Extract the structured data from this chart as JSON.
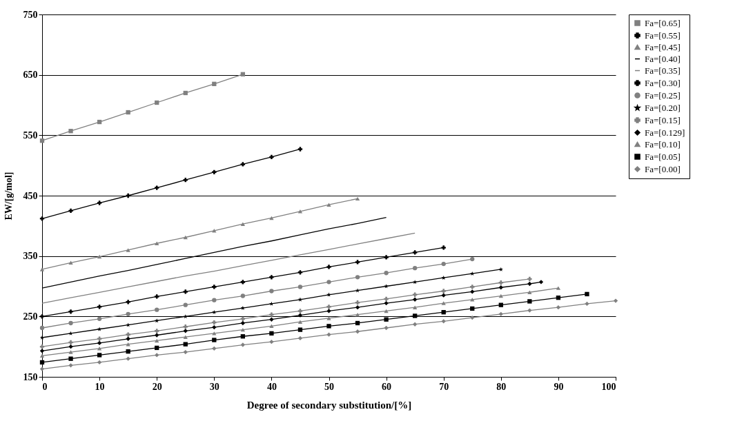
{
  "chart_data": {
    "type": "line",
    "xlabel": "Degree of secondary substitution/[%]",
    "ylabel": "EW/[g/mol]",
    "xlim": [
      0,
      100
    ],
    "xticks": [
      0,
      10,
      20,
      30,
      40,
      50,
      60,
      70,
      80,
      90,
      100
    ],
    "ylim": [
      150,
      750
    ],
    "yticks": [
      150,
      250,
      350,
      450,
      550,
      650,
      750
    ],
    "grid": "y",
    "legend": "right",
    "line_style": "solid",
    "series": [
      {
        "name": "Fa=[0.65]",
        "color": "#808080",
        "marker": "square",
        "x": [
          0,
          5,
          10,
          15,
          20,
          25,
          30,
          35
        ],
        "values": [
          541,
          557,
          572,
          588,
          604,
          620,
          635,
          651
        ]
      },
      {
        "name": "Fa=[0.55]",
        "color": "#000000",
        "marker": "cross",
        "x": [
          0,
          5,
          10,
          15,
          20,
          25,
          30,
          35,
          40,
          45
        ],
        "values": [
          412,
          425,
          438,
          450,
          463,
          476,
          489,
          502,
          514,
          527
        ]
      },
      {
        "name": "Fa=[0.45]",
        "color": "#808080",
        "marker": "triangle",
        "x": [
          0,
          5,
          10,
          15,
          20,
          25,
          30,
          35,
          40,
          45,
          50,
          55
        ],
        "values": [
          328,
          339,
          349,
          360,
          371,
          381,
          392,
          403,
          413,
          424,
          435,
          445
        ]
      },
      {
        "name": "Fa=[0.40]",
        "color": "#000000",
        "marker": "none",
        "x": [
          0,
          5,
          10,
          15,
          20,
          25,
          30,
          35,
          40,
          45,
          50,
          55,
          60
        ],
        "values": [
          297,
          307,
          317,
          326,
          336,
          346,
          356,
          366,
          375,
          385,
          395,
          404,
          414
        ]
      },
      {
        "name": "Fa=[0.35]",
        "color": "#808080",
        "marker": "none",
        "x": [
          0,
          5,
          10,
          15,
          20,
          25,
          30,
          35,
          40,
          45,
          50,
          55,
          60,
          65
        ],
        "values": [
          272,
          281,
          290,
          299,
          308,
          317,
          325,
          334,
          343,
          352,
          361,
          370,
          379,
          388
        ]
      },
      {
        "name": "Fa=[0.30]",
        "color": "#000000",
        "marker": "cross",
        "x": [
          0,
          5,
          10,
          15,
          20,
          25,
          30,
          35,
          40,
          45,
          50,
          55,
          60,
          65,
          70
        ],
        "values": [
          250,
          258,
          266,
          274,
          283,
          291,
          299,
          307,
          315,
          323,
          332,
          340,
          348,
          356,
          364
        ]
      },
      {
        "name": "Fa=[0.25]",
        "color": "#808080",
        "marker": "circle",
        "x": [
          0,
          5,
          10,
          15,
          20,
          25,
          30,
          35,
          40,
          45,
          50,
          55,
          60,
          65,
          70,
          75
        ],
        "values": [
          231,
          239,
          246,
          254,
          261,
          269,
          277,
          284,
          292,
          299,
          307,
          315,
          322,
          330,
          337,
          345
        ]
      },
      {
        "name": "Fa=[0.20]",
        "color": "#000000",
        "marker": "star",
        "x": [
          0,
          5,
          10,
          15,
          20,
          25,
          30,
          35,
          40,
          45,
          50,
          55,
          60,
          65,
          70,
          75,
          80
        ],
        "values": [
          215,
          222,
          229,
          236,
          243,
          250,
          257,
          264,
          271,
          278,
          286,
          293,
          300,
          307,
          314,
          321,
          328
        ]
      },
      {
        "name": "Fa=[0.15]",
        "color": "#808080",
        "marker": "cross",
        "x": [
          0,
          5,
          10,
          15,
          20,
          25,
          30,
          35,
          40,
          45,
          50,
          55,
          60,
          65,
          70,
          75,
          80,
          85
        ],
        "values": [
          200,
          207,
          213,
          220,
          226,
          233,
          240,
          246,
          253,
          259,
          266,
          273,
          279,
          286,
          292,
          299,
          306,
          312
        ]
      },
      {
        "name": "Fa=[0.129]",
        "color": "#000000",
        "marker": "diamond",
        "x": [
          0,
          5,
          10,
          15,
          20,
          25,
          30,
          35,
          40,
          45,
          50,
          55,
          60,
          65,
          70,
          75,
          80,
          85,
          87
        ],
        "values": [
          193,
          200,
          206,
          213,
          219,
          226,
          232,
          239,
          245,
          252,
          259,
          265,
          272,
          278,
          285,
          291,
          298,
          304,
          307
        ]
      },
      {
        "name": "Fa=[0.10]",
        "color": "#808080",
        "marker": "triangle",
        "x": [
          0,
          5,
          10,
          15,
          20,
          25,
          30,
          35,
          40,
          45,
          50,
          55,
          60,
          65,
          70,
          75,
          80,
          85,
          90
        ],
        "values": [
          185,
          191,
          197,
          204,
          210,
          216,
          222,
          228,
          234,
          241,
          247,
          253,
          259,
          265,
          272,
          278,
          284,
          290,
          297
        ]
      },
      {
        "name": "Fa=[0.05]",
        "color": "#000000",
        "marker": "square",
        "x": [
          0,
          5,
          10,
          15,
          20,
          25,
          30,
          35,
          40,
          45,
          50,
          55,
          60,
          65,
          70,
          75,
          80,
          85,
          90,
          95
        ],
        "values": [
          174,
          180,
          186,
          192,
          198,
          204,
          211,
          217,
          222,
          228,
          234,
          239,
          245,
          251,
          257,
          263,
          269,
          275,
          281,
          287
        ]
      },
      {
        "name": "Fa=[0.00]",
        "color": "#808080",
        "marker": "diamond",
        "x": [
          0,
          5,
          10,
          15,
          20,
          25,
          30,
          35,
          40,
          45,
          50,
          55,
          60,
          65,
          70,
          75,
          80,
          85,
          90,
          95,
          100
        ],
        "values": [
          163,
          169,
          174,
          180,
          186,
          191,
          197,
          203,
          208,
          214,
          220,
          225,
          231,
          237,
          242,
          248,
          254,
          260,
          265,
          271,
          276
        ]
      }
    ]
  }
}
